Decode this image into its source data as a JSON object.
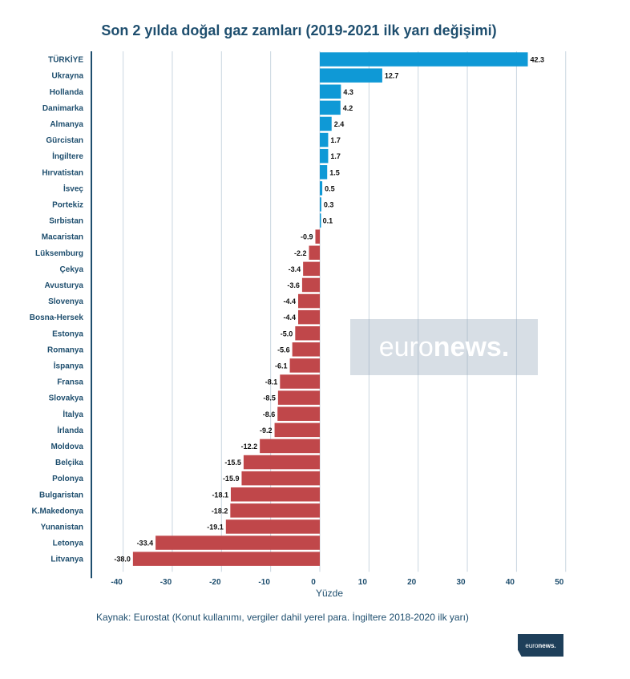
{
  "title": "Son 2 yılda doğal gaz zamları (2019-2021 ilk yarı değişimi)",
  "source": "Kaynak: Eurostat (Konut kullanımı, vergiler dahil yerel para. İngiltere 2018-2020 ilk yarı)",
  "watermark": {
    "light": "euro",
    "bold": "news."
  },
  "logo": {
    "light": "euro",
    "bold": "news."
  },
  "colors": {
    "positive": "#0f99d6",
    "negative": "#c0474a",
    "axis": "#1e4e6e",
    "grid": "#c9d6e0"
  },
  "chart_data": {
    "type": "bar",
    "orientation": "horizontal",
    "title": "Son 2 yılda doğal gaz zamları (2019-2021 ilk yarı değişimi)",
    "xlabel": "Yüzde",
    "ylabel": "",
    "xlim": [
      -40,
      50
    ],
    "xticks": [
      -40,
      -30,
      -20,
      -10,
      0,
      10,
      20,
      30,
      40,
      50
    ],
    "grid": "vertical",
    "categories": [
      "TÜRKİYE",
      "Ukrayna",
      "Hollanda",
      "Danimarka",
      "Almanya",
      "Gürcistan",
      "İngiltere",
      "Hırvatistan",
      "İsveç",
      "Portekiz",
      "Sırbistan",
      "Macaristan",
      "Lüksemburg",
      "Çekya",
      "Avusturya",
      "Slovenya",
      "Bosna-Hersek",
      "Estonya",
      "Romanya",
      "İspanya",
      "Fransa",
      "Slovakya",
      "İtalya",
      "İrlanda",
      "Moldova",
      "Belçika",
      "Polonya",
      "Bulgaristan",
      "K.Makedonya",
      "Yunanistan",
      "Letonya",
      "Litvanya"
    ],
    "values": [
      42.3,
      12.7,
      4.3,
      4.2,
      2.4,
      1.7,
      1.7,
      1.5,
      0.5,
      0.3,
      0.1,
      -0.9,
      -2.2,
      -3.4,
      -3.6,
      -4.4,
      -4.4,
      -5.0,
      -5.6,
      -6.1,
      -8.1,
      -8.5,
      -8.6,
      -9.2,
      -12.2,
      -15.5,
      -15.9,
      -18.1,
      -18.2,
      -19.1,
      -33.4,
      -38.0
    ],
    "value_labels": [
      "42.3",
      "12.7",
      "4.3",
      "4.2",
      "2.4",
      "1.7",
      "1.7",
      "1.5",
      "0.5",
      "0.3",
      "0.1",
      "-0.9",
      "-2.2",
      "-3.4",
      "-3.6",
      "-4.4",
      "-4.4",
      "-5.0",
      "-5.6",
      "-6.1",
      "-8.1",
      "-8.5",
      "-8.6",
      "-9.2",
      "-12.2",
      "-15.5",
      "-15.9",
      "-18.1",
      "-18.2",
      "-19.1",
      "-33.4",
      "-38.0"
    ]
  }
}
